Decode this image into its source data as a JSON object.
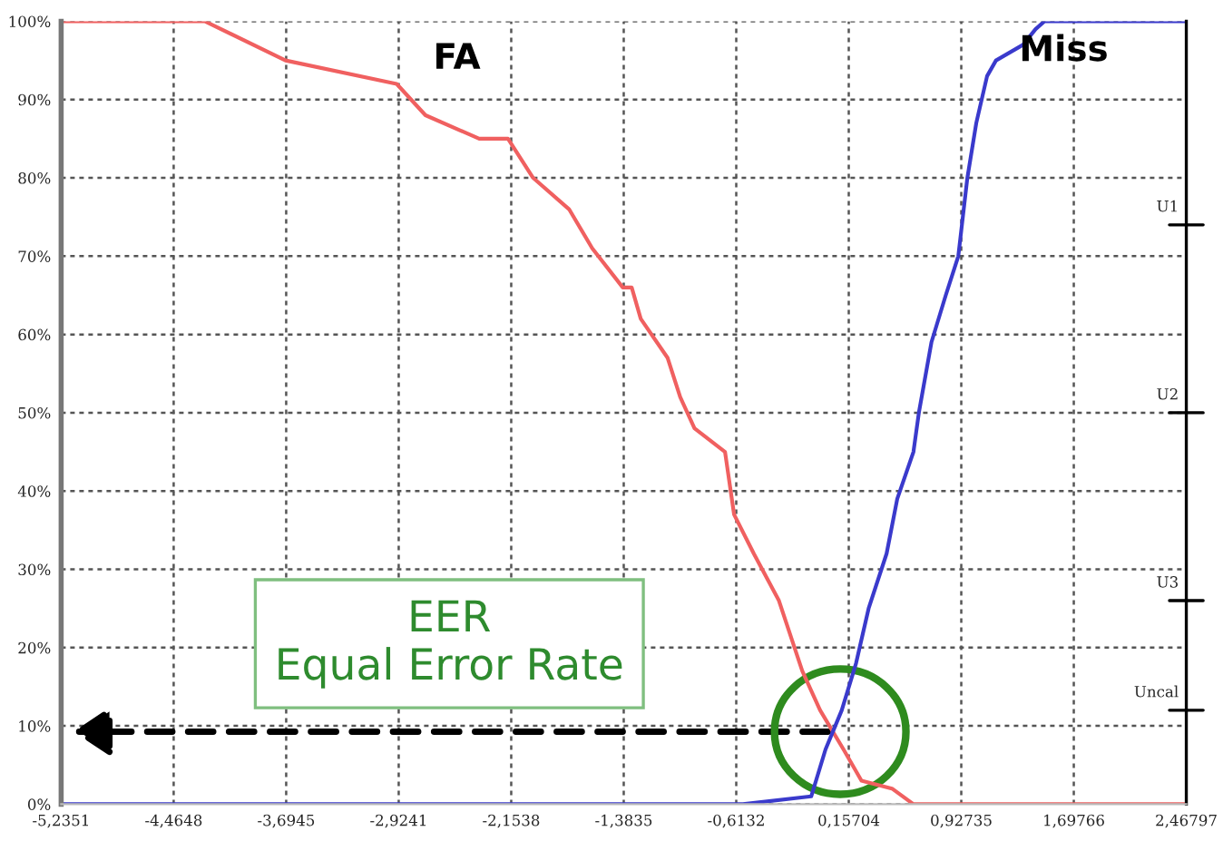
{
  "chart_data": {
    "type": "line",
    "x": [
      -5.2351,
      -4.252,
      -3.699,
      -2.938,
      -2.741,
      -2.373,
      -2.176,
      -2.004,
      -1.758,
      -1.599,
      -1.39,
      -1.329,
      -1.267,
      -1.083,
      -0.997,
      -0.899,
      -0.69,
      -0.628,
      -0.493,
      -0.321,
      -0.161,
      -0.039,
      0.121,
      0.244,
      0.453,
      0.6,
      2.46797
    ],
    "series": [
      {
        "name": "FA",
        "color": "#f06060",
        "values": [
          100,
          100,
          95,
          92,
          88,
          85,
          85,
          80,
          76,
          71,
          66,
          66,
          62,
          57,
          52,
          48,
          45,
          37,
          32,
          26,
          17,
          12,
          7,
          3,
          2,
          0,
          0
        ]
      },
      {
        "name": "Miss",
        "color": "#3a3acc",
        "x": [
          -5.2351,
          -0.567,
          -0.1,
          -0.002,
          0.109,
          0.207,
          0.293,
          0.416,
          0.489,
          0.6,
          0.637,
          0.723,
          0.821,
          0.907,
          0.969,
          1.03,
          1.104,
          1.165,
          1.35,
          1.436,
          1.497,
          2.46797
        ],
        "values": [
          0,
          0,
          1,
          7,
          12,
          18,
          25,
          32,
          39,
          45,
          50,
          59,
          65,
          70,
          80,
          87,
          93,
          95,
          97,
          99,
          100,
          100
        ]
      }
    ],
    "xlim": [
      -5.2351,
      2.46797
    ],
    "xticks": [
      {
        "value": -5.2351,
        "label": "-5,2351"
      },
      {
        "value": -4.4648,
        "label": "-4,4648"
      },
      {
        "value": -3.6945,
        "label": "-3,6945"
      },
      {
        "value": -2.9241,
        "label": "-2,9241"
      },
      {
        "value": -2.1538,
        "label": "-2,1538"
      },
      {
        "value": -1.3835,
        "label": "-1,3835"
      },
      {
        "value": -0.6132,
        "label": "-0,6132"
      },
      {
        "value": 0.15704,
        "label": "0,15704"
      },
      {
        "value": 0.92735,
        "label": "0,92735"
      },
      {
        "value": 1.69766,
        "label": "1,69766"
      },
      {
        "value": 2.46797,
        "label": "2,46797"
      }
    ],
    "ylim": [
      0,
      100
    ],
    "yticks": [
      {
        "value": 0,
        "label": "0%"
      },
      {
        "value": 10,
        "label": "10%"
      },
      {
        "value": 20,
        "label": "20%"
      },
      {
        "value": 30,
        "label": "30%"
      },
      {
        "value": 40,
        "label": "40%"
      },
      {
        "value": 50,
        "label": "50%"
      },
      {
        "value": 60,
        "label": "60%"
      },
      {
        "value": 70,
        "label": "70%"
      },
      {
        "value": 80,
        "label": "80%"
      },
      {
        "value": 90,
        "label": "90%"
      },
      {
        "value": 100,
        "label": "100%"
      }
    ],
    "grid": true,
    "legend": false,
    "annotations": [
      "EER\nEqual Error Rate"
    ],
    "ref_lines": [
      {
        "axis": "y",
        "value": 74,
        "label": "U1"
      },
      {
        "axis": "y",
        "value": 50,
        "label": "U2"
      },
      {
        "axis": "y",
        "value": 26,
        "label": "U3"
      },
      {
        "axis": "y",
        "value": 12,
        "label": "Uncal"
      }
    ]
  }
}
